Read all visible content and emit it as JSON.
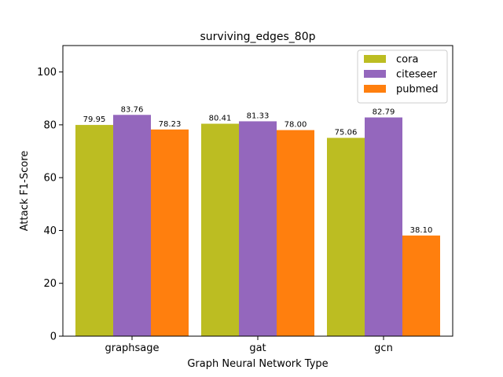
{
  "chart_data": {
    "type": "bar",
    "title": "surviving_edges_80p",
    "xlabel": "Graph Neural Network Type",
    "ylabel": "Attack F1-Score",
    "categories": [
      "graphsage",
      "gat",
      "gcn"
    ],
    "ylim": [
      0,
      110
    ],
    "yticks": [
      0,
      20,
      40,
      60,
      80,
      100
    ],
    "grid": false,
    "legend_position": "top-right",
    "series": [
      {
        "name": "cora",
        "color": "#bcbd22",
        "values": [
          79.95,
          80.41,
          75.06
        ],
        "labels": [
          "79.95",
          "80.41",
          "75.06"
        ]
      },
      {
        "name": "citeseer",
        "color": "#9467bd",
        "values": [
          83.76,
          81.33,
          82.79
        ],
        "labels": [
          "83.76",
          "81.33",
          "82.79"
        ]
      },
      {
        "name": "pubmed",
        "color": "#ff7f0e",
        "values": [
          78.23,
          78.0,
          38.1
        ],
        "labels": [
          "78.23",
          "78.00",
          "38.10"
        ]
      }
    ]
  }
}
